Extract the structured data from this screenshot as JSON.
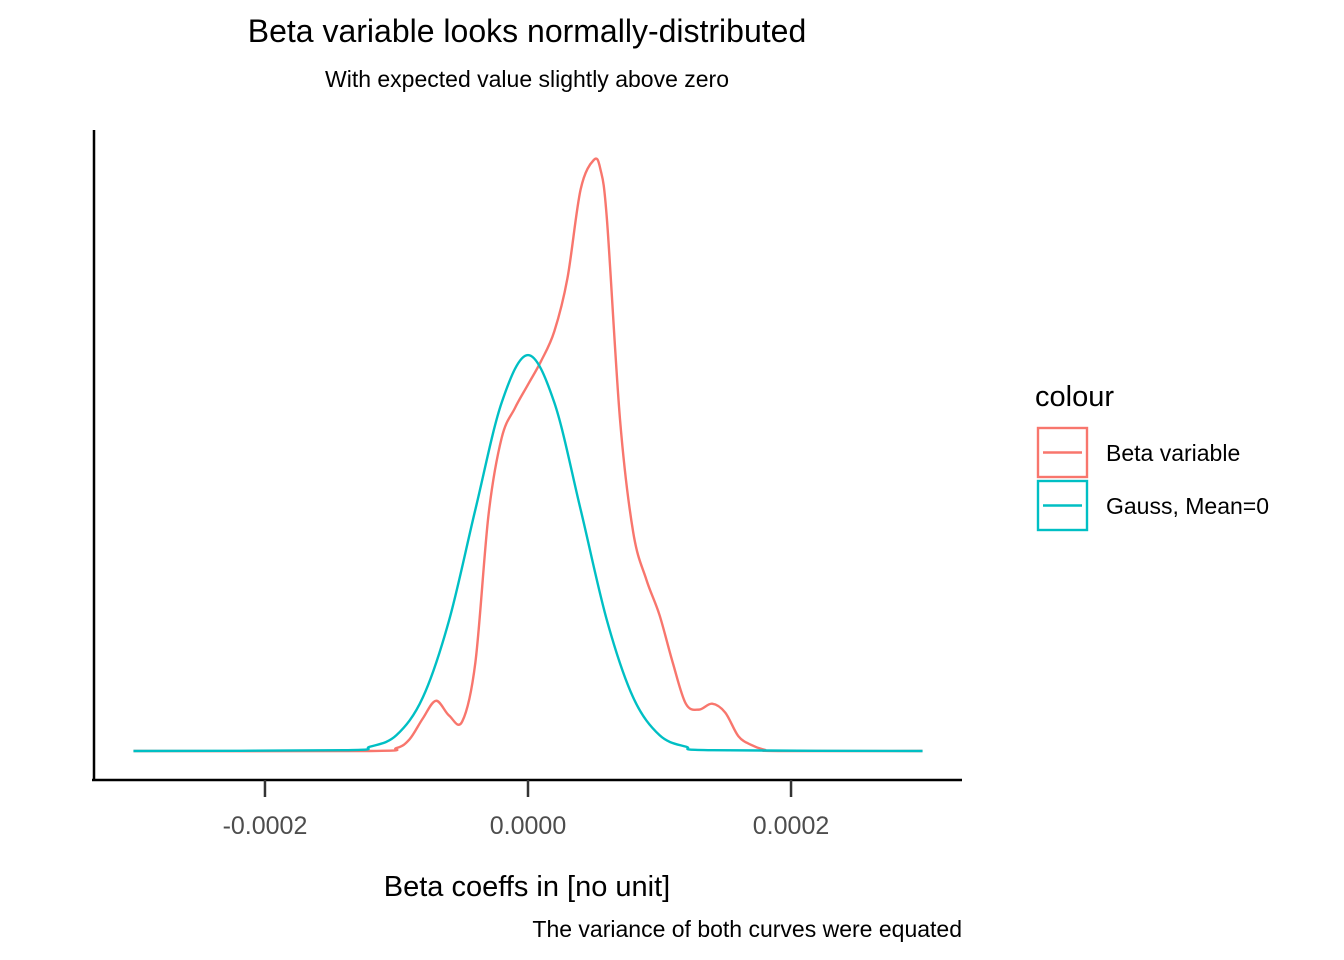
{
  "chart_data": {
    "type": "line",
    "title": "Beta variable looks normally-distributed",
    "subtitle": "With expected value slightly above zero",
    "xlabel": "Beta coeffs in [no unit]",
    "ylabel": "",
    "caption": "The variance of both curves were equated",
    "xlim": [
      -0.00033,
      0.00033
    ],
    "ylim": [
      -0.03,
      1.05
    ],
    "x_ticks": [
      -0.0002,
      0.0,
      0.0002
    ],
    "x_tick_labels": [
      "-0.0002",
      "0.0000",
      "0.0002"
    ],
    "y_ticks_shown": false,
    "grid": false,
    "legend": {
      "title": "colour",
      "position": "right",
      "entries": [
        {
          "label": "Beta variable",
          "color": "#F8766D"
        },
        {
          "label": "Gauss, Mean=0",
          "color": "#00BFC4"
        }
      ]
    },
    "series": [
      {
        "name": "Beta variable",
        "color": "#F8766D",
        "x": [
          -0.0003,
          -0.00012,
          -0.0001,
          -9e-05,
          -8e-05,
          -7e-05,
          -6e-05,
          -5e-05,
          -4e-05,
          -3e-05,
          -2e-05,
          -1e-05,
          0.0,
          1e-05,
          2e-05,
          3e-05,
          4e-05,
          5e-05,
          5.5e-05,
          6e-05,
          7e-05,
          8e-05,
          9e-05,
          0.0001,
          0.00011,
          0.00012,
          0.00013,
          0.00014,
          0.00015,
          0.00016,
          0.00017,
          0.00018,
          0.00019,
          0.0003
        ],
        "y": [
          0.0,
          0.0,
          0.005,
          0.02,
          0.055,
          0.085,
          0.06,
          0.05,
          0.15,
          0.4,
          0.53,
          0.58,
          0.62,
          0.66,
          0.71,
          0.8,
          0.95,
          1.0,
          0.985,
          0.9,
          0.56,
          0.37,
          0.29,
          0.23,
          0.15,
          0.08,
          0.07,
          0.08,
          0.065,
          0.025,
          0.01,
          0.002,
          0.0,
          0.0
        ]
      },
      {
        "name": "Gauss, Mean=0",
        "color": "#00BFC4",
        "x": [
          -0.0003,
          -0.00014,
          -0.00012,
          -0.0001,
          -8e-05,
          -6e-05,
          -4e-05,
          -2e-05,
          0.0,
          2e-05,
          4e-05,
          6e-05,
          8e-05,
          0.0001,
          0.00012,
          0.00014,
          0.0003
        ],
        "y": [
          0.0,
          0.002,
          0.011,
          0.04,
          0.135,
          0.33,
          0.61,
          0.88,
          1.0,
          0.88,
          0.61,
          0.33,
          0.135,
          0.04,
          0.011,
          0.002,
          0.0
        ],
        "peak_relative_to_beta": 0.67
      }
    ]
  }
}
